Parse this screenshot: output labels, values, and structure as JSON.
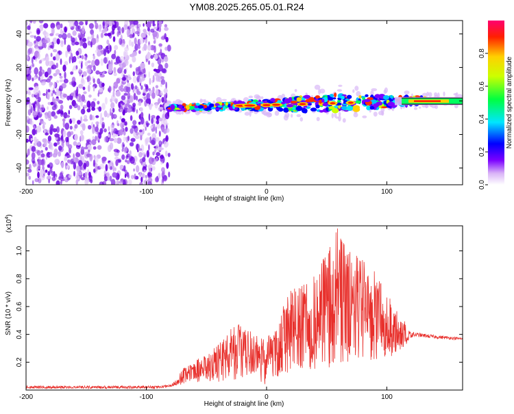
{
  "title": "YM08.2025.265.05.01.R24",
  "chart_data": [
    {
      "type": "heatmap",
      "xlabel": "Height of straight line (km)",
      "ylabel": "Frequency (Hz)",
      "xlim": [
        -200,
        163
      ],
      "ylim": [
        -50,
        48
      ],
      "xticks": [
        -200,
        -100,
        0,
        100
      ],
      "yticks": [
        -40,
        -20,
        0,
        20,
        40
      ],
      "noise_region_x": [
        -200,
        -81
      ],
      "signal_band_x": [
        -81,
        163
      ],
      "signal_band_center_freq": 0,
      "colorbar": {
        "label": "Normalized spectral amplitude",
        "range": [
          0,
          1
        ],
        "ticks": [
          "0.0",
          "0.2",
          "0.4",
          "0.6",
          "0.8"
        ]
      }
    },
    {
      "type": "line",
      "xlabel": "Height of straight line (km)",
      "ylabel": "SNR (10 * v/v)",
      "scale_label": "(x10",
      "scale_exp": "4",
      "xlim": [
        -200,
        163
      ],
      "ylim": [
        0,
        1.18
      ],
      "xticks": [
        -200,
        -100,
        0,
        100
      ],
      "yticks": [
        0.2,
        0.4,
        0.6,
        0.8,
        1.0
      ],
      "ytick_labels": [
        "0.2",
        "0.4",
        "0.6",
        "0.8",
        "1.0"
      ],
      "series": [
        {
          "name": "SNR",
          "color": "#e8302c",
          "envelope_x": [
            -200,
            -90,
            -80,
            -75,
            -70,
            -60,
            -50,
            -40,
            -30,
            -20,
            -10,
            0,
            10,
            15,
            20,
            30,
            40,
            50,
            60,
            70,
            80,
            90,
            100,
            110,
            118,
            125,
            140,
            163
          ],
          "envelope_upper": [
            0.03,
            0.03,
            0.04,
            0.08,
            0.15,
            0.22,
            0.25,
            0.33,
            0.45,
            0.48,
            0.42,
            0.38,
            0.45,
            0.65,
            0.72,
            0.75,
            0.82,
            1.0,
            1.18,
            1.0,
            0.95,
            0.85,
            0.7,
            0.55,
            0.46,
            0.43,
            0.41,
            0.39
          ],
          "envelope_lower": [
            0.01,
            0.01,
            0.02,
            0.03,
            0.04,
            0.05,
            0.05,
            0.06,
            0.07,
            0.08,
            0.05,
            0.04,
            0.1,
            0.1,
            0.15,
            0.15,
            0.15,
            0.15,
            0.2,
            0.2,
            0.2,
            0.2,
            0.2,
            0.25,
            0.35,
            0.37,
            0.36,
            0.35
          ]
        }
      ]
    }
  ]
}
